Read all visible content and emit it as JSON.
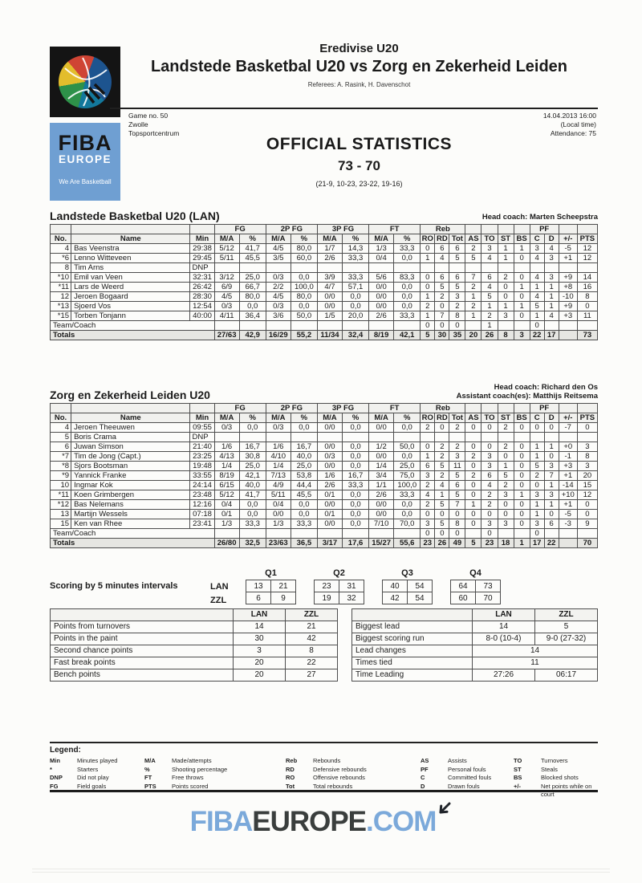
{
  "header": {
    "competition": "Eredivise U20",
    "title": "Landstede Basketbal U20 vs Zorg en Zekerheid Leiden",
    "referees": "Referees: A. Rasink, H. Davenschot",
    "game_no": "Game no. 50",
    "city": "Zwolle",
    "venue": "Topsportcentrum",
    "datetime": "14.04.2013 16:00",
    "local_time": "(Local time)",
    "attendance": "Attendance: 75",
    "doc_title": "OFFICIAL STATISTICS",
    "final_score": "73 - 70",
    "period_scores": "(21-9, 10-23, 23-22, 19-16)"
  },
  "logo": {
    "brand_top": "FIBA",
    "brand_bottom": "EUROPE",
    "tagline": "We Are Basketball"
  },
  "colors": {
    "logo_blue": "#6f9fd2",
    "footer_blue": "#7ba9da",
    "footer_dark": "#3a3e3d"
  },
  "stats_columns": {
    "groups": {
      "fg": "FG",
      "fg2": "2P FG",
      "fg3": "3P FG",
      "ft": "FT",
      "reb": "Reb",
      "pf": "PF"
    },
    "labels": [
      "No.",
      "Name",
      "Min",
      "M/A",
      "%",
      "M/A",
      "%",
      "M/A",
      "%",
      "M/A",
      "%",
      "RO",
      "RD",
      "Tot",
      "AS",
      "TO",
      "ST",
      "BS",
      "C",
      "D",
      "+/-",
      "PTS"
    ]
  },
  "team1": {
    "title": "Landstede Basketbal U20 (LAN)",
    "coach_lines": [
      "Head coach: Marten Scheepstra"
    ],
    "players": [
      [
        "4",
        "Bas Veenstra",
        "29:38",
        "5/12",
        "41,7",
        "4/5",
        "80,0",
        "1/7",
        "14,3",
        "1/3",
        "33,3",
        "0",
        "6",
        "6",
        "2",
        "3",
        "1",
        "1",
        "3",
        "4",
        "-5",
        "12"
      ],
      [
        "*6",
        "Lenno Witteveen",
        "29:45",
        "5/11",
        "45,5",
        "3/5",
        "60,0",
        "2/6",
        "33,3",
        "0/4",
        "0,0",
        "1",
        "4",
        "5",
        "5",
        "4",
        "1",
        "0",
        "4",
        "3",
        "+1",
        "12"
      ],
      [
        "8",
        "Tim Arns",
        "DNP",
        "",
        "",
        "",
        "",
        "",
        "",
        "",
        "",
        "",
        "",
        "",
        "",
        "",
        "",
        "",
        "",
        "",
        "",
        ""
      ],
      [
        "*10",
        "Emil van Veen",
        "32:31",
        "3/12",
        "25,0",
        "0/3",
        "0,0",
        "3/9",
        "33,3",
        "5/6",
        "83,3",
        "0",
        "6",
        "6",
        "7",
        "6",
        "2",
        "0",
        "4",
        "3",
        "+9",
        "14"
      ],
      [
        "*11",
        "Lars de Weerd",
        "26:42",
        "6/9",
        "66,7",
        "2/2",
        "100,0",
        "4/7",
        "57,1",
        "0/0",
        "0,0",
        "0",
        "5",
        "5",
        "2",
        "4",
        "0",
        "1",
        "1",
        "1",
        "+8",
        "16"
      ],
      [
        "12",
        "Jeroen Bogaard",
        "28:30",
        "4/5",
        "80,0",
        "4/5",
        "80,0",
        "0/0",
        "0,0",
        "0/0",
        "0,0",
        "1",
        "2",
        "3",
        "1",
        "5",
        "0",
        "0",
        "4",
        "1",
        "-10",
        "8"
      ],
      [
        "*13",
        "Sjoerd Vos",
        "12:54",
        "0/3",
        "0,0",
        "0/3",
        "0,0",
        "0/0",
        "0,0",
        "0/0",
        "0,0",
        "2",
        "0",
        "2",
        "2",
        "1",
        "1",
        "1",
        "5",
        "1",
        "+9",
        "0"
      ],
      [
        "*15",
        "Torben Tonjann",
        "40:00",
        "4/11",
        "36,4",
        "3/6",
        "50,0",
        "1/5",
        "20,0",
        "2/6",
        "33,3",
        "1",
        "7",
        "8",
        "1",
        "2",
        "3",
        "0",
        "1",
        "4",
        "+3",
        "11"
      ]
    ],
    "team_row": {
      "label": "Team/Coach",
      "cells": [
        "",
        "",
        "",
        "",
        "",
        "",
        "",
        "",
        "0",
        "0",
        "0",
        "",
        "1",
        "",
        "",
        "0",
        "",
        "",
        ""
      ]
    },
    "totals_row": {
      "label": "Totals",
      "cells": [
        "27/63",
        "42,9",
        "16/29",
        "55,2",
        "11/34",
        "32,4",
        "8/19",
        "42,1",
        "5",
        "30",
        "35",
        "20",
        "26",
        "8",
        "3",
        "22",
        "17",
        "",
        "73"
      ]
    }
  },
  "team2": {
    "title": "Zorg en Zekerheid Leiden U20",
    "coach_lines": [
      "Head coach: Richard den Os",
      "Assistant coach(es): Matthijs Reitsema"
    ],
    "players": [
      [
        "4",
        "Jeroen Theeuwen",
        "09:55",
        "0/3",
        "0,0",
        "0/3",
        "0,0",
        "0/0",
        "0,0",
        "0/0",
        "0,0",
        "2",
        "0",
        "2",
        "0",
        "0",
        "2",
        "0",
        "0",
        "0",
        "-7",
        "0"
      ],
      [
        "5",
        "Boris Crama",
        "DNP",
        "",
        "",
        "",
        "",
        "",
        "",
        "",
        "",
        "",
        "",
        "",
        "",
        "",
        "",
        "",
        "",
        "",
        "",
        ""
      ],
      [
        "6",
        "Juwan Simson",
        "21:40",
        "1/6",
        "16,7",
        "1/6",
        "16,7",
        "0/0",
        "0,0",
        "1/2",
        "50,0",
        "0",
        "2",
        "2",
        "0",
        "0",
        "2",
        "0",
        "1",
        "1",
        "+0",
        "3"
      ],
      [
        "*7",
        "Tim de Jong   (Capt.)",
        "23:25",
        "4/13",
        "30,8",
        "4/10",
        "40,0",
        "0/3",
        "0,0",
        "0/0",
        "0,0",
        "1",
        "2",
        "3",
        "2",
        "3",
        "0",
        "0",
        "1",
        "0",
        "-1",
        "8"
      ],
      [
        "*8",
        "Sjors Bootsman",
        "19:48",
        "1/4",
        "25,0",
        "1/4",
        "25,0",
        "0/0",
        "0,0",
        "1/4",
        "25,0",
        "6",
        "5",
        "11",
        "0",
        "3",
        "1",
        "0",
        "5",
        "3",
        "+3",
        "3"
      ],
      [
        "*9",
        "Yannick Franke",
        "33:55",
        "8/19",
        "42,1",
        "7/13",
        "53,8",
        "1/6",
        "16,7",
        "3/4",
        "75,0",
        "3",
        "2",
        "5",
        "2",
        "6",
        "5",
        "0",
        "2",
        "7",
        "+1",
        "20"
      ],
      [
        "10",
        "Ingmar Kok",
        "24:14",
        "6/15",
        "40,0",
        "4/9",
        "44,4",
        "2/6",
        "33,3",
        "1/1",
        "100,0",
        "2",
        "4",
        "6",
        "0",
        "4",
        "2",
        "0",
        "0",
        "1",
        "-14",
        "15"
      ],
      [
        "*11",
        "Koen Grimbergen",
        "23:48",
        "5/12",
        "41,7",
        "5/11",
        "45,5",
        "0/1",
        "0,0",
        "2/6",
        "33,3",
        "4",
        "1",
        "5",
        "0",
        "2",
        "3",
        "1",
        "3",
        "3",
        "+10",
        "12"
      ],
      [
        "*12",
        "Bas Nelemans",
        "12:16",
        "0/4",
        "0,0",
        "0/4",
        "0,0",
        "0/0",
        "0,0",
        "0/0",
        "0,0",
        "2",
        "5",
        "7",
        "1",
        "2",
        "0",
        "0",
        "1",
        "1",
        "+1",
        "0"
      ],
      [
        "13",
        "Martijn Wessels",
        "07:18",
        "0/1",
        "0,0",
        "0/0",
        "0,0",
        "0/1",
        "0,0",
        "0/0",
        "0,0",
        "0",
        "0",
        "0",
        "0",
        "0",
        "0",
        "0",
        "1",
        "0",
        "-5",
        "0"
      ],
      [
        "15",
        "Ken van Rhee",
        "23:41",
        "1/3",
        "33,3",
        "1/3",
        "33,3",
        "0/0",
        "0,0",
        "7/10",
        "70,0",
        "3",
        "5",
        "8",
        "0",
        "3",
        "3",
        "0",
        "3",
        "6",
        "-3",
        "9"
      ]
    ],
    "team_row": {
      "label": "Team/Coach",
      "cells": [
        "",
        "",
        "",
        "",
        "",
        "",
        "",
        "",
        "0",
        "0",
        "0",
        "",
        "0",
        "",
        "",
        "0",
        "",
        "",
        ""
      ]
    },
    "totals_row": {
      "label": "Totals",
      "cells": [
        "26/80",
        "32,5",
        "23/63",
        "36,5",
        "3/17",
        "17,6",
        "15/27",
        "55,6",
        "23",
        "26",
        "49",
        "5",
        "23",
        "18",
        "1",
        "17",
        "22",
        "",
        "70"
      ]
    }
  },
  "scoring": {
    "label": "Scoring by 5 minutes intervals",
    "teams": [
      "LAN",
      "ZZL"
    ],
    "quarters": [
      "Q1",
      "Q2",
      "Q3",
      "Q4"
    ],
    "values": {
      "LAN": [
        [
          "13",
          "21"
        ],
        [
          "23",
          "31"
        ],
        [
          "40",
          "54"
        ],
        [
          "64",
          "73"
        ]
      ],
      "ZZL": [
        [
          "6",
          "9"
        ],
        [
          "19",
          "32"
        ],
        [
          "42",
          "54"
        ],
        [
          "60",
          "70"
        ]
      ]
    }
  },
  "team_stats": {
    "headers": [
      "LAN",
      "ZZL"
    ],
    "rows": [
      {
        "label": "Points from turnovers",
        "lan": "14",
        "zzl": "21"
      },
      {
        "label": "Points in the paint",
        "lan": "30",
        "zzl": "42"
      },
      {
        "label": "Second chance points",
        "lan": "3",
        "zzl": "8"
      },
      {
        "label": "Fast break points",
        "lan": "20",
        "zzl": "22"
      },
      {
        "label": "Bench points",
        "lan": "20",
        "zzl": "27"
      }
    ]
  },
  "game_stats": {
    "headers": [
      "LAN",
      "ZZL"
    ],
    "rows": [
      {
        "label": "Biggest lead",
        "lan": "14",
        "zzl": "5"
      },
      {
        "label": "Biggest scoring run",
        "lan": "8-0 (10-4)",
        "zzl": "9-0 (27-32)"
      },
      {
        "label": "Lead changes",
        "span": "14"
      },
      {
        "label": "Times tied",
        "span": "11"
      },
      {
        "label": "Time Leading",
        "lan": "27:26",
        "zzl": "06:17"
      }
    ]
  },
  "legend": {
    "title": "Legend:",
    "columns": [
      [
        {
          "abbr": "Min",
          "desc": "Minutes played"
        },
        {
          "abbr": "*",
          "desc": "Starters"
        },
        {
          "abbr": "DNP",
          "desc": "Did not play"
        },
        {
          "abbr": "FG",
          "desc": "Field goals"
        }
      ],
      [
        {
          "abbr": "M/A",
          "desc": "Made/attempts"
        },
        {
          "abbr": "%",
          "desc": "Shooting percentage"
        },
        {
          "abbr": "FT",
          "desc": "Free throws"
        },
        {
          "abbr": "PTS",
          "desc": "Points scored"
        }
      ],
      [
        {
          "abbr": "Reb",
          "desc": "Rebounds"
        },
        {
          "abbr": "RD",
          "desc": "Defensive rebounds"
        },
        {
          "abbr": "RO",
          "desc": "Offensive rebounds"
        },
        {
          "abbr": "Tot",
          "desc": "Total rebounds"
        }
      ],
      [
        {
          "abbr": "AS",
          "desc": "Assists"
        },
        {
          "abbr": "PF",
          "desc": "Personal fouls"
        },
        {
          "abbr": "C",
          "desc": "Committed fouls"
        },
        {
          "abbr": "D",
          "desc": "Drawn fouls"
        }
      ],
      [
        {
          "abbr": "TO",
          "desc": "Turnovers"
        },
        {
          "abbr": "ST",
          "desc": "Steals"
        },
        {
          "abbr": "BS",
          "desc": "Blocked shots"
        },
        {
          "abbr": "+/-",
          "desc": "Net points while on court"
        }
      ]
    ]
  },
  "footer": {
    "fiba": "FIBA",
    "europe": "EUROPE",
    "com": ".COM"
  }
}
